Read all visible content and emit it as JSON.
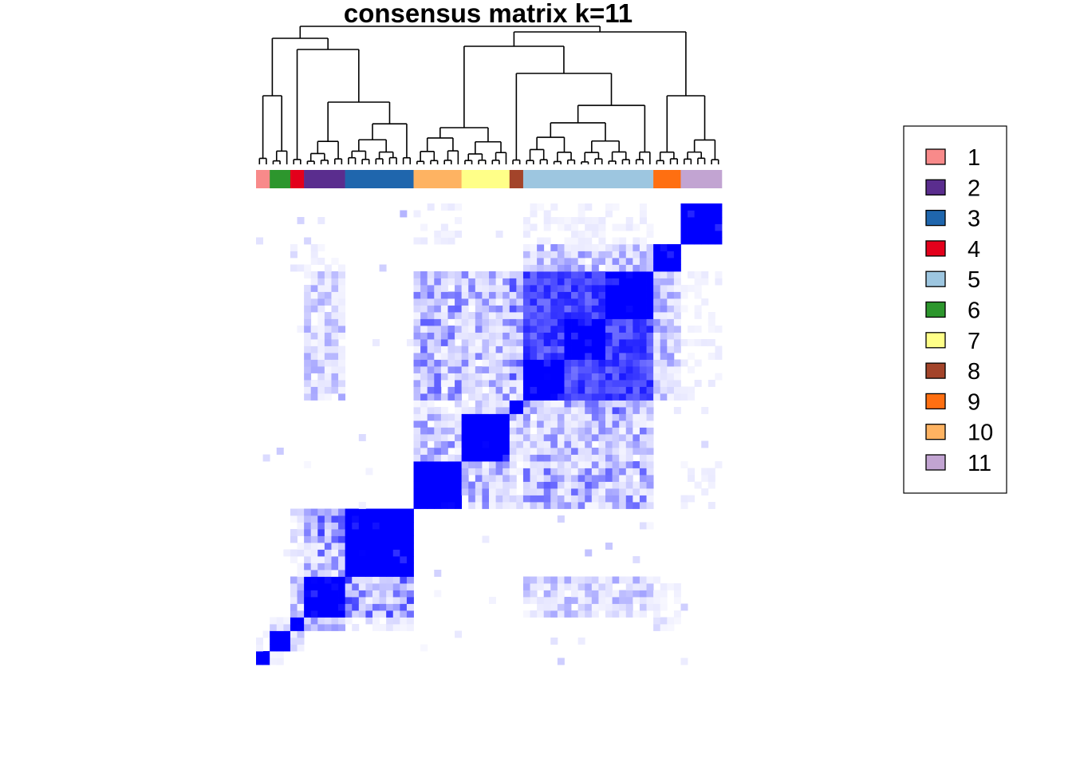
{
  "chart_data": {
    "type": "heatmap",
    "title": "consensus matrix k=11",
    "row_color": "#0000ff",
    "background": "#ffffff",
    "legend": {
      "placement": "right",
      "entries": [
        {
          "label": "1",
          "color": "#f88a8a"
        },
        {
          "label": "2",
          "color": "#5a2d8e"
        },
        {
          "label": "3",
          "color": "#1f66ad"
        },
        {
          "label": "4",
          "color": "#e3001b"
        },
        {
          "label": "5",
          "color": "#9dc6e0"
        },
        {
          "label": "6",
          "color": "#2d962d"
        },
        {
          "label": "7",
          "color": "#ffff88"
        },
        {
          "label": "8",
          "color": "#a3442a"
        },
        {
          "label": "9",
          "color": "#ff6f11"
        },
        {
          "label": "10",
          "color": "#feb362"
        },
        {
          "label": "11",
          "color": "#c2a4d2"
        }
      ]
    },
    "annotation_order": [
      "1",
      "6",
      "4",
      "2",
      "3",
      "10",
      "7",
      "8",
      "5",
      "9",
      "11"
    ],
    "cluster_sizes": [
      2,
      3,
      2,
      6,
      10,
      7,
      7,
      2,
      19,
      4,
      6
    ],
    "cluster_similarity": [
      [
        1.0,
        0.05,
        0.0,
        0.0,
        0.0,
        0.0,
        0.0,
        0.0,
        0.0,
        0.0,
        0.0
      ],
      [
        0.05,
        1.0,
        0.15,
        0.0,
        0.0,
        0.0,
        0.0,
        0.0,
        0.0,
        0.0,
        0.0
      ],
      [
        0.0,
        0.15,
        1.0,
        0.25,
        0.1,
        0.0,
        0.0,
        0.0,
        0.0,
        0.1,
        0.0
      ],
      [
        0.0,
        0.0,
        0.25,
        1.0,
        0.45,
        0.0,
        0.0,
        0.0,
        0.2,
        0.05,
        0.0
      ],
      [
        0.0,
        0.0,
        0.1,
        0.45,
        1.0,
        0.0,
        0.0,
        0.0,
        0.0,
        0.0,
        0.0
      ],
      [
        0.0,
        0.0,
        0.0,
        0.0,
        0.0,
        1.0,
        0.3,
        0.1,
        0.35,
        0.0,
        0.05
      ],
      [
        0.0,
        0.0,
        0.0,
        0.0,
        0.0,
        0.3,
        1.0,
        0.2,
        0.3,
        0.0,
        0.0
      ],
      [
        0.0,
        0.0,
        0.0,
        0.0,
        0.0,
        0.1,
        0.2,
        1.0,
        0.4,
        0.0,
        0.0
      ],
      [
        0.0,
        0.0,
        0.0,
        0.2,
        0.0,
        0.35,
        0.3,
        0.4,
        1.0,
        0.25,
        0.05
      ],
      [
        0.0,
        0.0,
        0.1,
        0.05,
        0.0,
        0.0,
        0.0,
        0.0,
        0.25,
        1.0,
        0.0
      ],
      [
        0.0,
        0.0,
        0.0,
        0.0,
        0.0,
        0.05,
        0.0,
        0.0,
        0.05,
        0.0,
        1.0
      ]
    ],
    "within_cluster_5_subblocks": [
      6,
      6,
      7
    ]
  }
}
